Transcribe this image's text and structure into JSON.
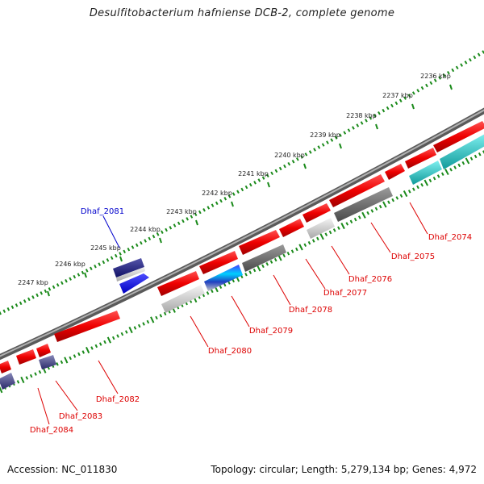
{
  "title": "Desulfitobacterium hafniense DCB-2, complete genome",
  "footer": {
    "accession": "Accession: NC_011830",
    "topology": "Topology: circular; Length: 5,279,134 bp; Genes: 4,972"
  },
  "colors": {
    "backbone": "#7a7a7a",
    "ticks": "#1a8a1a",
    "forward_gene": "#ee1111",
    "label_red": "#dd0000",
    "label_blue": "#0000cc"
  },
  "kbp_labels": [
    "2236 kbp",
    "2237 kbp",
    "2238 kbp",
    "2239 kbp",
    "2240 kbp",
    "2241 kbp",
    "2242 kbp",
    "2243 kbp",
    "2244 kbp",
    "2245 kbp",
    "2246 kbp",
    "2247 kbp"
  ],
  "gene_labels": [
    {
      "text": "Dhaf_2074",
      "color": "red"
    },
    {
      "text": "Dhaf_2075",
      "color": "red"
    },
    {
      "text": "Dhaf_2076",
      "color": "red"
    },
    {
      "text": "Dhaf_2077",
      "color": "red"
    },
    {
      "text": "Dhaf_2078",
      "color": "red"
    },
    {
      "text": "Dhaf_2079",
      "color": "red"
    },
    {
      "text": "Dhaf_2080",
      "color": "red"
    },
    {
      "text": "Dhaf_2081",
      "color": "blue"
    },
    {
      "text": "Dhaf_2082",
      "color": "red"
    },
    {
      "text": "Dhaf_2083",
      "color": "red"
    },
    {
      "text": "Dhaf_2084",
      "color": "red"
    }
  ]
}
